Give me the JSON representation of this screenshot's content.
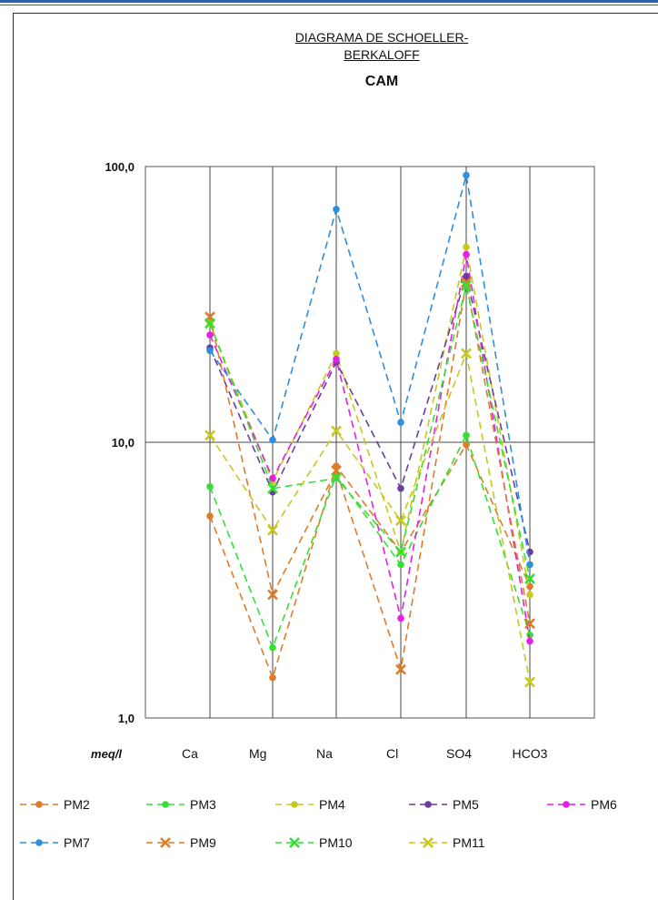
{
  "title_line1": "DIAGRAMA  DE SCHOELLER-",
  "title_line2": "BERKALOFF",
  "subtitle": "CAM",
  "colors": {
    "frame_rule": "#2f5fa8"
  },
  "chart_data": {
    "type": "line",
    "title": "DIAGRAMA  DE SCHOELLER-BERKALOFF",
    "subtitle": "CAM",
    "y_scale": "log",
    "ylim": [
      1,
      100
    ],
    "ylabel": "meq/l",
    "y_tick_labels": [
      "100,0",
      "10,0",
      "1,0"
    ],
    "y_tick_values": [
      100,
      10,
      1
    ],
    "categories": [
      "Ca",
      "Mg",
      "Na",
      "Cl",
      "SO4",
      "HCO3"
    ],
    "grid": "vertical at each category, horizontal at 10,0",
    "legend_position": "bottom",
    "series": [
      {
        "name": "PM2",
        "color": "#e07b27",
        "marker": "dot",
        "values": [
          5.4,
          1.4,
          8.2,
          4.0,
          9.8,
          3.0
        ]
      },
      {
        "name": "PM3",
        "color": "#33e033",
        "marker": "dot",
        "values": [
          6.9,
          1.8,
          7.6,
          3.6,
          10.6,
          2.0
        ]
      },
      {
        "name": "PM4",
        "color": "#c8c81e",
        "marker": "dot",
        "values": [
          27.0,
          7.2,
          21.0,
          4.0,
          51.0,
          2.8
        ]
      },
      {
        "name": "PM5",
        "color": "#6a3d9a",
        "marker": "dot",
        "values": [
          22.0,
          6.6,
          19.5,
          6.8,
          40.0,
          4.0
        ]
      },
      {
        "name": "PM6",
        "color": "#e61ee6",
        "marker": "dot",
        "values": [
          24.5,
          7.4,
          20.0,
          2.3,
          48.0,
          1.9
        ]
      },
      {
        "name": "PM7",
        "color": "#2e8fe0",
        "marker": "dot",
        "values": [
          21.5,
          10.2,
          70.0,
          11.8,
          93.0,
          3.6
        ]
      },
      {
        "name": "PM9",
        "color": "#e07b27",
        "marker": "cross",
        "values": [
          28.5,
          2.8,
          7.9,
          1.5,
          38.0,
          2.2
        ]
      },
      {
        "name": "PM10",
        "color": "#33e033",
        "marker": "cross",
        "values": [
          27.0,
          6.8,
          7.4,
          4.0,
          37.0,
          3.2
        ]
      },
      {
        "name": "PM11",
        "color": "#c8c81e",
        "marker": "cross",
        "values": [
          10.6,
          4.8,
          11.0,
          5.2,
          21.0,
          1.35
        ]
      }
    ]
  }
}
